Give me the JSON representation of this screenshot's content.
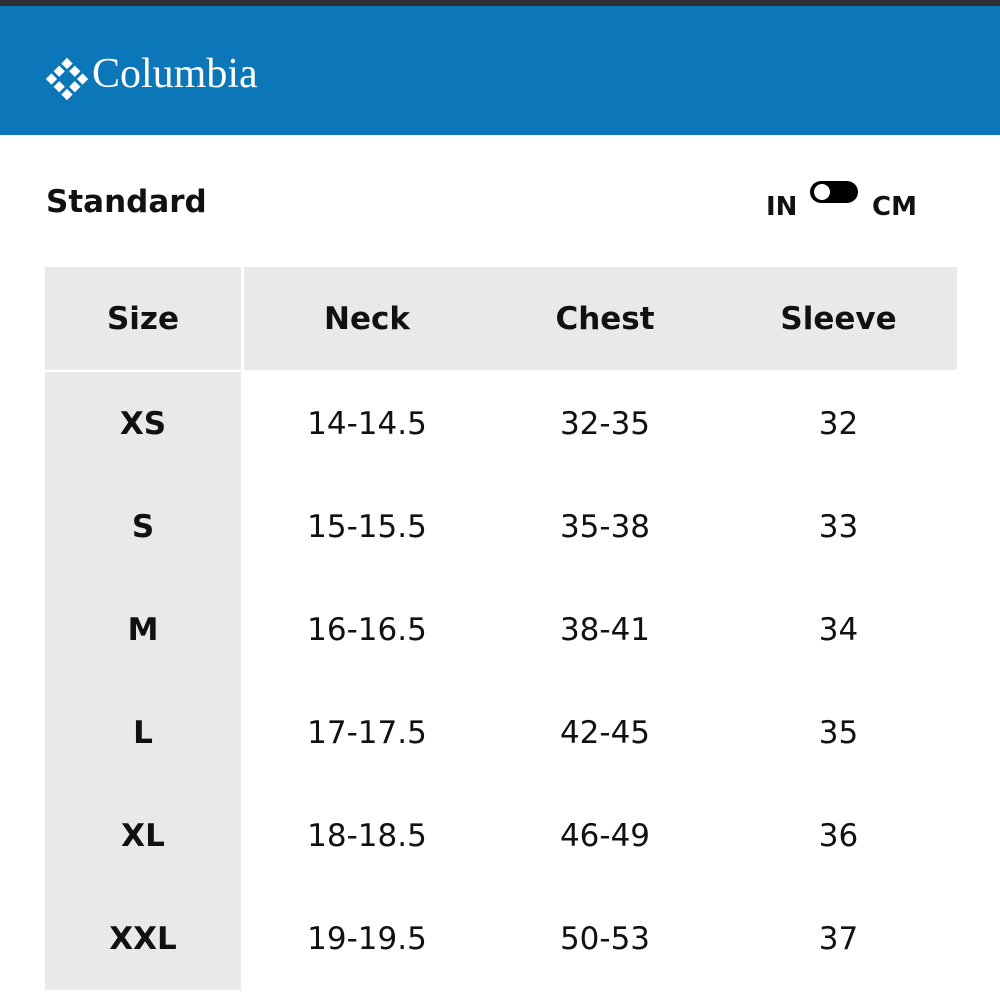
{
  "header": {
    "brand": "Columbia"
  },
  "section": {
    "title": "Standard",
    "unit_left": "IN",
    "unit_right": "CM"
  },
  "table": {
    "columns": [
      "Size",
      "Neck",
      "Chest",
      "Sleeve"
    ],
    "rows": [
      [
        "XS",
        "14-14.5",
        "32-35",
        "32"
      ],
      [
        "S",
        "15-15.5",
        "35-38",
        "33"
      ],
      [
        "M",
        "16-16.5",
        "38-41",
        "34"
      ],
      [
        "L",
        "17-17.5",
        "42-45",
        "35"
      ],
      [
        "XL",
        "18-18.5",
        "46-49",
        "36"
      ],
      [
        "XXL",
        "19-19.5",
        "50-53",
        "37"
      ]
    ]
  }
}
